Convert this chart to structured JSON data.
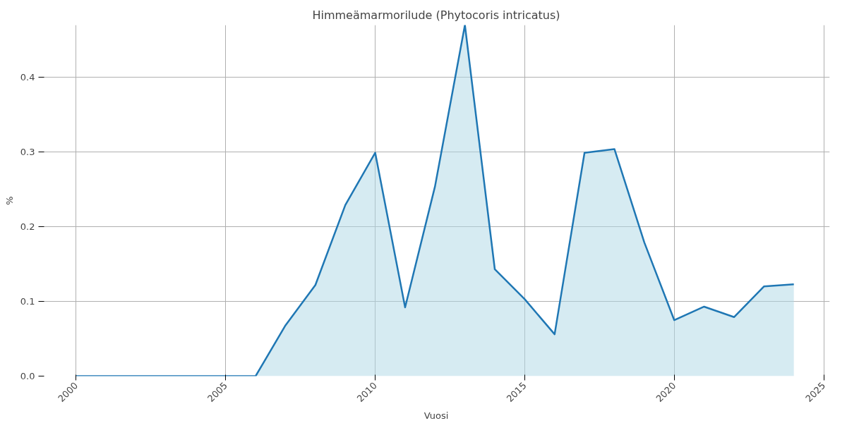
{
  "chart_data": {
    "type": "area",
    "title": "Himmeämarmorilude (Phytocoris intricatus)",
    "xlabel": "Vuosi",
    "ylabel": "%",
    "x": [
      2000,
      2001,
      2002,
      2003,
      2004,
      2005,
      2006,
      2007,
      2008,
      2009,
      2010,
      2011,
      2012,
      2013,
      2014,
      2015,
      2016,
      2017,
      2018,
      2019,
      2020,
      2021,
      2022,
      2023,
      2024
    ],
    "series": [
      {
        "color": "#1f77b4",
        "values": [
          0,
          0,
          0,
          0,
          0,
          0,
          0,
          0.068,
          0.122,
          0.229,
          0.299,
          0.092,
          0.254,
          0.47,
          0.143,
          0.103,
          0.056,
          0.299,
          0.304,
          0.179,
          0.075,
          0.093,
          0.079,
          0.12,
          0.123
        ]
      }
    ],
    "xlim": [
      1998.88,
      2025.2
    ],
    "ylim": [
      0,
      0.47
    ],
    "xticks": [
      2000,
      2005,
      2010,
      2015,
      2020,
      2025
    ],
    "yticks": [
      {
        "value": 0,
        "label": "0.0"
      },
      0.1,
      0.2,
      0.3,
      0.4
    ],
    "grid": true
  }
}
